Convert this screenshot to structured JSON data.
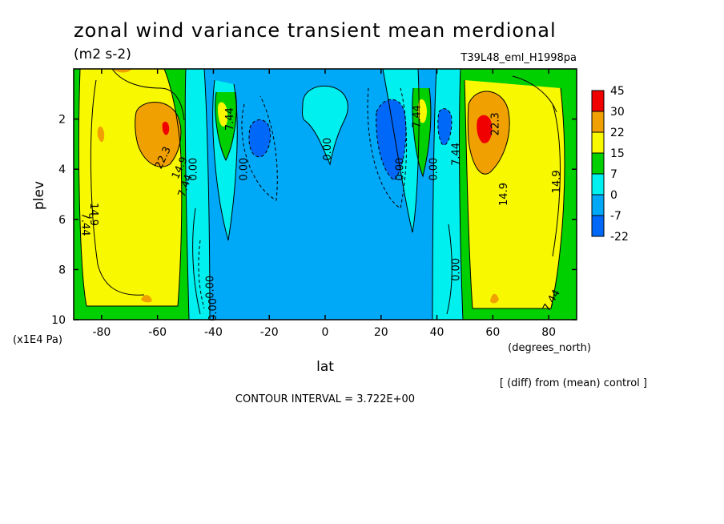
{
  "chart_data": {
    "type": "heatmap",
    "title": "zonal wind variance transient mean merdional",
    "units": "(m2 s-2)",
    "experiment": "T39L48_eml_H1998pa",
    "xlabel": "lat",
    "x_units": "(degrees_north)",
    "ylabel": "plev",
    "y_units": "(x1E4 Pa)",
    "xlim": [
      -90,
      90
    ],
    "ylim": [
      10,
      0
    ],
    "x_ticks": [
      -80,
      -60,
      -40,
      -20,
      0,
      20,
      40,
      60,
      80
    ],
    "y_ticks": [
      2,
      4,
      6,
      8,
      10
    ],
    "x_tick_labels": [
      "-80",
      "-60",
      "-40",
      "-20",
      "0",
      "20",
      "40",
      "60",
      "80"
    ],
    "y_tick_labels": [
      "2",
      "4",
      "6",
      "8",
      "10"
    ],
    "colorbar": {
      "labels": [
        "45",
        "30",
        "22",
        "15",
        "7",
        "0",
        "-7",
        "-22"
      ],
      "colors": [
        "#f00000",
        "#f0a000",
        "#f8f800",
        "#00d000",
        "#00f0f0",
        "#00a8f8",
        "#0068f8"
      ]
    },
    "contour_labels": [
      {
        "text": "22.3",
        "lat": -57,
        "plev": 3.6,
        "angle": -65
      },
      {
        "text": "14.9",
        "lat": -51,
        "plev": 4.0,
        "angle": -65
      },
      {
        "text": "7.44",
        "lat": -49,
        "plev": 4.7,
        "angle": -70
      },
      {
        "text": "0.00",
        "lat": -46,
        "plev": 4.0,
        "angle": -90
      },
      {
        "text": "7.44",
        "lat": -33,
        "plev": 2.0,
        "angle": -90
      },
      {
        "text": "0.00",
        "lat": -28,
        "plev": 4.0,
        "angle": -90
      },
      {
        "text": "14.9",
        "lat": -84,
        "plev": 5.8,
        "angle": 90
      },
      {
        "text": "7.44",
        "lat": -87,
        "plev": 6.2,
        "angle": 90
      },
      {
        "text": "0.00",
        "lat": -40,
        "plev": 8.7,
        "angle": -90
      },
      {
        "text": "0.00",
        "lat": -39,
        "plev": 9.6,
        "angle": -90
      },
      {
        "text": "0.00",
        "lat": 2,
        "plev": 3.2,
        "angle": -90
      },
      {
        "text": "0.00",
        "lat": 28,
        "plev": 4.0,
        "angle": -90
      },
      {
        "text": "7.44",
        "lat": 34,
        "plev": 1.9,
        "angle": -90
      },
      {
        "text": "0.00",
        "lat": 40,
        "plev": 4.0,
        "angle": -90
      },
      {
        "text": "7.44",
        "lat": 48,
        "plev": 3.4,
        "angle": -90
      },
      {
        "text": "0.00",
        "lat": 48,
        "plev": 8.0,
        "angle": -90
      },
      {
        "text": "22.3",
        "lat": 62,
        "plev": 2.2,
        "angle": -90
      },
      {
        "text": "14.9",
        "lat": 65,
        "plev": 5.0,
        "angle": -90
      },
      {
        "text": "14.9",
        "lat": 84,
        "plev": 4.5,
        "angle": -90
      },
      {
        "text": "7.44",
        "lat": 82,
        "plev": 9.3,
        "angle": -60
      }
    ],
    "contour_interval": "CONTOUR INTERVAL = 3.722E+00",
    "note": "[ (diff) from (mean) control ]"
  }
}
